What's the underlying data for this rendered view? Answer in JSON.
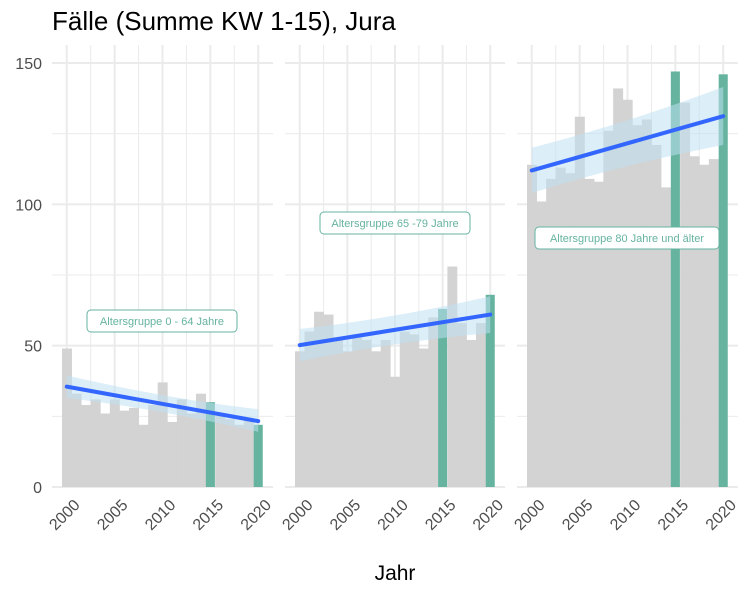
{
  "colors": {
    "background_bar": "#d3d3d3",
    "highlight_bar": "#66b3a0",
    "trend_line": "#3366ff",
    "confidence_band": "#bfe0f0",
    "grid": "#ebebeb",
    "label_text": "#66b3a0"
  },
  "chart_data": {
    "type": "bar",
    "title": "Fälle (Summe KW 1-15), Jura",
    "xlabel": "Jahr",
    "ylabel": "",
    "ylim": [
      0,
      150
    ],
    "y_ticks": [
      0,
      50,
      100,
      150
    ],
    "x_ticks": [
      2000,
      2005,
      2010,
      2015,
      2020
    ],
    "grid": true,
    "highlight_years": [
      2015,
      2020
    ],
    "panels": [
      {
        "label": "Altersgruppe 0 - 64 Jahre",
        "x": [
          2000,
          2001,
          2002,
          2003,
          2004,
          2005,
          2006,
          2007,
          2008,
          2009,
          2010,
          2011,
          2012,
          2013,
          2014,
          2015,
          2016,
          2017,
          2018,
          2019,
          2020
        ],
        "values": [
          49,
          33,
          29,
          31,
          26,
          31,
          27,
          28,
          22,
          29,
          37,
          23,
          31,
          26,
          33,
          30,
          26,
          24,
          22,
          24,
          22
        ],
        "trend": {
          "start": 35.5,
          "end": 23.3,
          "band_start": [
            31.5,
            39.5
          ],
          "band_end": [
            19.5,
            27.5
          ]
        }
      },
      {
        "label": "Altersgruppe 65 -79 Jahre",
        "x": [
          2000,
          2001,
          2002,
          2003,
          2004,
          2005,
          2006,
          2007,
          2008,
          2009,
          2010,
          2011,
          2012,
          2013,
          2014,
          2015,
          2016,
          2017,
          2018,
          2019,
          2020
        ],
        "values": [
          48,
          55,
          62,
          61,
          53,
          48,
          54,
          52,
          48,
          52,
          39,
          55,
          54,
          49,
          60,
          63,
          78,
          58,
          52,
          58,
          68
        ],
        "trend": {
          "start": 50.2,
          "end": 61.0,
          "band_start": [
            44.5,
            55.9
          ],
          "band_end": [
            54.5,
            67.5
          ]
        }
      },
      {
        "label": "Altersgruppe 80 Jahre und älter",
        "x": [
          2000,
          2001,
          2002,
          2003,
          2004,
          2005,
          2006,
          2007,
          2008,
          2009,
          2010,
          2011,
          2012,
          2013,
          2014,
          2015,
          2016,
          2017,
          2018,
          2019,
          2020
        ],
        "values": [
          114,
          101,
          109,
          113,
          111,
          131,
          109,
          108,
          126,
          141,
          137,
          128,
          130,
          121,
          106,
          147,
          136,
          117,
          114,
          116,
          146
        ],
        "trend": {
          "start": 112.0,
          "end": 131.2,
          "band_start": [
            104.0,
            120.0
          ],
          "band_end": [
            121.0,
            141.5
          ]
        }
      }
    ]
  }
}
